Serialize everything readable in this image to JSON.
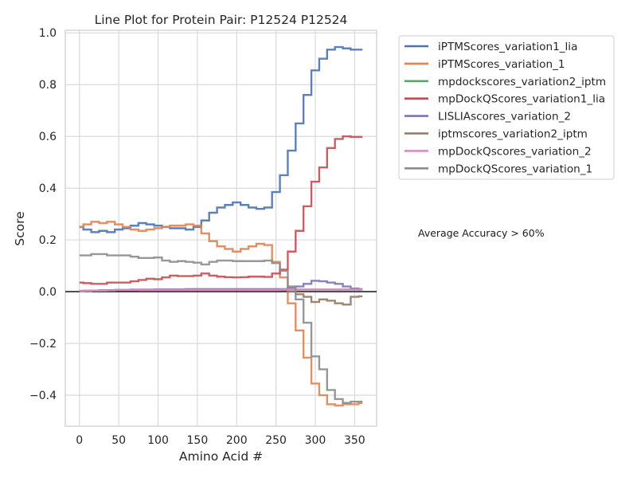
{
  "chart_data": {
    "type": "line",
    "title": "Line Plot for Protein Pair: P12524 P12524",
    "xlabel": "Amino Acid #",
    "ylabel": "Score",
    "xlim": [
      -18,
      378
    ],
    "ylim": [
      -0.52,
      1.01
    ],
    "xticks": [
      0,
      50,
      100,
      150,
      200,
      250,
      300,
      350
    ],
    "yticks": [
      -0.4,
      -0.2,
      0.0,
      0.2,
      0.4,
      0.6,
      0.8,
      1.0
    ],
    "xtick_labels": [
      "0",
      "50",
      "100",
      "150",
      "200",
      "250",
      "300",
      "350"
    ],
    "ytick_labels": [
      "−0.4",
      "−0.2",
      "0.0",
      "0.2",
      "0.4",
      "0.6",
      "0.8",
      "1.0"
    ],
    "grid": true,
    "zero_line": true,
    "legend_position": "outside-upper-right",
    "annotation": "Average Accuracy > 60%",
    "x": [
      0,
      10,
      20,
      30,
      40,
      50,
      60,
      70,
      80,
      90,
      100,
      110,
      120,
      130,
      140,
      150,
      160,
      170,
      180,
      190,
      200,
      210,
      220,
      230,
      240,
      250,
      260,
      270,
      280,
      290,
      300,
      310,
      320,
      330,
      340,
      350,
      360
    ],
    "series": [
      {
        "name": "iPTMScores_variation1_lia",
        "color": "#4c72b0",
        "values": [
          0.25,
          0.24,
          0.23,
          0.235,
          0.23,
          0.24,
          0.245,
          0.255,
          0.265,
          0.26,
          0.255,
          0.25,
          0.245,
          0.245,
          0.24,
          0.25,
          0.275,
          0.305,
          0.325,
          0.335,
          0.345,
          0.335,
          0.325,
          0.32,
          0.325,
          0.385,
          0.45,
          0.545,
          0.65,
          0.76,
          0.855,
          0.9,
          0.935,
          0.945,
          0.94,
          0.935,
          0.935
        ]
      },
      {
        "name": "iPTMScores_variation_1",
        "color": "#dd8452",
        "values": [
          0.25,
          0.26,
          0.27,
          0.265,
          0.27,
          0.26,
          0.25,
          0.24,
          0.235,
          0.24,
          0.245,
          0.25,
          0.255,
          0.255,
          0.26,
          0.255,
          0.225,
          0.195,
          0.175,
          0.165,
          0.155,
          0.165,
          0.175,
          0.185,
          0.18,
          0.115,
          0.055,
          -0.045,
          -0.15,
          -0.255,
          -0.355,
          -0.4,
          -0.435,
          -0.44,
          -0.435,
          -0.435,
          -0.43
        ]
      },
      {
        "name": "mpdockscores_variation2_iptm",
        "color": "#55a868",
        "values": [
          0.003,
          0.004,
          0.004,
          0.005,
          0.005,
          0.006,
          0.006,
          0.006,
          0.007,
          0.007,
          0.007,
          0.007,
          0.007,
          0.007,
          0.008,
          0.008,
          0.008,
          0.008,
          0.008,
          0.008,
          0.008,
          0.008,
          0.008,
          0.008,
          0.008,
          0.008,
          0.008,
          0.008,
          0.008,
          0.008,
          0.008,
          0.008,
          0.008,
          0.008,
          0.008,
          0.008,
          0.008
        ]
      },
      {
        "name": "mpDockQScores_variation1_lia",
        "color": "#c44e52",
        "values": [
          0.035,
          0.033,
          0.03,
          0.03,
          0.035,
          0.035,
          0.035,
          0.04,
          0.045,
          0.05,
          0.048,
          0.055,
          0.062,
          0.06,
          0.06,
          0.062,
          0.07,
          0.062,
          0.058,
          0.056,
          0.055,
          0.056,
          0.058,
          0.058,
          0.057,
          0.07,
          0.085,
          0.155,
          0.235,
          0.33,
          0.425,
          0.48,
          0.555,
          0.59,
          0.6,
          0.598,
          0.598
        ]
      },
      {
        "name": "LISLIAscores_variation_2",
        "color": "#8172b3",
        "values": [
          0.002,
          0.003,
          0.004,
          0.005,
          0.006,
          0.007,
          0.007,
          0.008,
          0.008,
          0.008,
          0.009,
          0.009,
          0.009,
          0.009,
          0.01,
          0.01,
          0.01,
          0.01,
          0.01,
          0.01,
          0.01,
          0.01,
          0.01,
          0.01,
          0.01,
          0.01,
          0.01,
          0.015,
          0.02,
          0.03,
          0.042,
          0.04,
          0.035,
          0.03,
          0.02,
          0.012,
          0.01
        ]
      },
      {
        "name": "iptmscores_variation2_iptm",
        "color": "#937860",
        "values": [
          0.002,
          0.003,
          0.004,
          0.004,
          0.005,
          0.006,
          0.006,
          0.007,
          0.007,
          0.007,
          0.007,
          0.007,
          0.007,
          0.007,
          0.007,
          0.007,
          0.007,
          0.007,
          0.007,
          0.007,
          0.007,
          0.007,
          0.007,
          0.007,
          0.007,
          0.007,
          0.005,
          0.0,
          -0.01,
          -0.02,
          -0.04,
          -0.03,
          -0.035,
          -0.045,
          -0.05,
          -0.02,
          -0.018
        ]
      },
      {
        "name": "mpDockQscores_variation_2",
        "color": "#da8bc3",
        "values": [
          0.002,
          0.003,
          0.004,
          0.004,
          0.005,
          0.006,
          0.006,
          0.007,
          0.007,
          0.007,
          0.007,
          0.007,
          0.007,
          0.007,
          0.007,
          0.007,
          0.007,
          0.007,
          0.007,
          0.007,
          0.007,
          0.007,
          0.007,
          0.007,
          0.007,
          0.007,
          0.008,
          0.008,
          0.008,
          0.008,
          0.008,
          0.008,
          0.008,
          0.008,
          0.008,
          0.008,
          0.008
        ]
      },
      {
        "name": "mpDockQScores_variation_1",
        "color": "#8c8c8c",
        "values": [
          0.14,
          0.14,
          0.145,
          0.145,
          0.14,
          0.14,
          0.14,
          0.135,
          0.13,
          0.13,
          0.132,
          0.12,
          0.115,
          0.118,
          0.115,
          0.112,
          0.105,
          0.115,
          0.12,
          0.12,
          0.118,
          0.118,
          0.118,
          0.118,
          0.12,
          0.11,
          0.08,
          0.02,
          -0.03,
          -0.12,
          -0.25,
          -0.3,
          -0.38,
          -0.415,
          -0.43,
          -0.425,
          -0.425
        ]
      }
    ]
  }
}
